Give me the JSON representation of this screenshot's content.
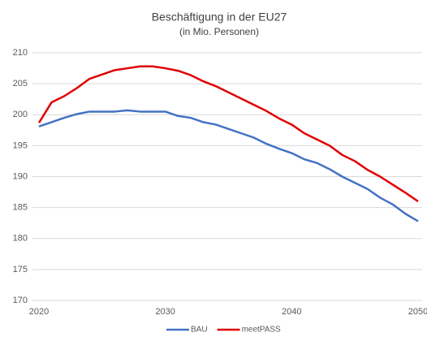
{
  "chart_data": {
    "type": "line",
    "title": "Beschäftigung in der EU27",
    "subtitle": "(in Mio. Personen)",
    "x": [
      2020,
      2021,
      2022,
      2023,
      2024,
      2025,
      2026,
      2027,
      2028,
      2029,
      2030,
      2031,
      2032,
      2033,
      2034,
      2035,
      2036,
      2037,
      2038,
      2039,
      2040,
      2041,
      2042,
      2043,
      2044,
      2045,
      2046,
      2047,
      2048,
      2049,
      2050
    ],
    "series": [
      {
        "name": "BAU",
        "color": "#4472c4",
        "values": [
          198.1,
          198.8,
          199.5,
          200.1,
          200.5,
          200.5,
          200.5,
          200.7,
          200.5,
          200.5,
          200.5,
          199.8,
          199.5,
          198.8,
          198.4,
          197.7,
          197.0,
          196.3,
          195.3,
          194.5,
          193.8,
          192.8,
          192.2,
          191.2,
          190.0,
          189.0,
          188.0,
          186.6,
          185.5,
          184.0,
          182.8
        ]
      },
      {
        "name": "meetPASS",
        "color": "#e00000",
        "values": [
          198.7,
          202.0,
          203.0,
          204.3,
          205.8,
          206.5,
          207.2,
          207.5,
          207.8,
          207.8,
          207.5,
          207.1,
          206.4,
          205.4,
          204.6,
          203.6,
          202.6,
          201.6,
          200.6,
          199.4,
          198.4,
          197.0,
          196.0,
          195.0,
          193.5,
          192.5,
          191.1,
          190.0,
          188.7,
          187.4,
          186.0
        ]
      }
    ],
    "xlim": [
      2020,
      2050
    ],
    "xticks": [
      2020,
      2030,
      2040,
      2050
    ],
    "ylim": [
      170,
      210
    ],
    "yticks": [
      170,
      175,
      180,
      185,
      190,
      195,
      200,
      205,
      210
    ],
    "grid": true,
    "legend": "bottom"
  }
}
